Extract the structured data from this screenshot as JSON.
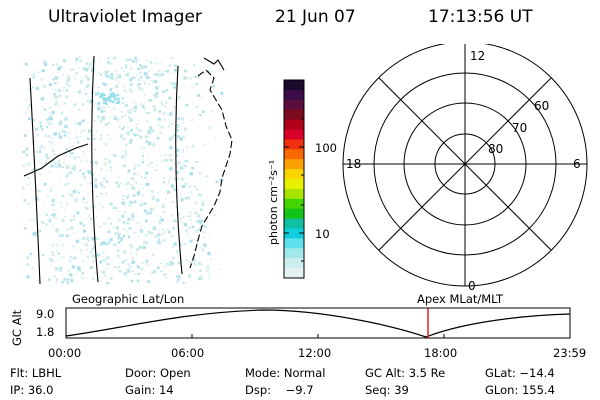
{
  "header": {
    "title": "Ultraviolet Imager",
    "date": "21 Jun 07",
    "time": "17:13:56 UT"
  },
  "colorbar": {
    "unit_label": "photon cm⁻²s⁻¹",
    "ticks": [
      "100",
      "10"
    ],
    "colors": [
      "#1a0a2e",
      "#3a0c48",
      "#5b0e3c",
      "#7a0a1c",
      "#b0001a",
      "#d8002a",
      "#ee3010",
      "#f86a00",
      "#fca000",
      "#f8d400",
      "#e6f000",
      "#a8e400",
      "#44d400",
      "#12c418",
      "#10c0a0",
      "#10cede",
      "#5edfec",
      "#a0e8ec",
      "#cceeee",
      "#e4f2f2"
    ]
  },
  "polar": {
    "mlt_labels": [
      "12",
      "18",
      "6",
      "0"
    ],
    "lat_labels": [
      "60",
      "70",
      "80"
    ]
  },
  "timeline": {
    "ylabel": "GC Alt",
    "y_ticks": [
      "9.0",
      "1.8"
    ],
    "left_caption": "Geographic Lat/Lon",
    "right_caption": "Apex MLat/MLT",
    "x_ticks": [
      "00:00",
      "06:00",
      "12:00",
      "18:00",
      "23:59"
    ],
    "marker_color": "#dd0000"
  },
  "status": {
    "row1": [
      "Flt: LBHL",
      "Door: Open",
      "Mode: Normal",
      "GC Alt: 3.5 Re",
      "GLat: −14.4"
    ],
    "row2": [
      "IP: 36.0",
      "Gain: 14",
      "Dsp:    −9.7",
      "Seq: 39",
      "GLon: 155.4"
    ]
  }
}
